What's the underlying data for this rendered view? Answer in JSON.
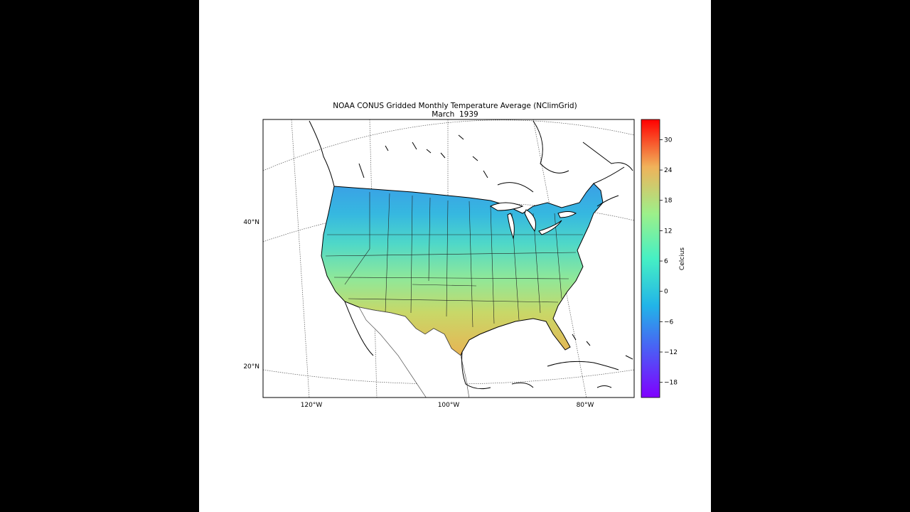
{
  "title": "NOAA CONUS Gridded Monthly Temperature Average (NClimGrid)",
  "subtitle": "March  1939",
  "longitude_labels": [
    "120°W",
    "100°W",
    "80°W"
  ],
  "latitude_labels": [
    "40°N",
    "20°N"
  ],
  "colorbar": {
    "label": "Celcius",
    "ticks": [
      "30",
      "24",
      "18",
      "12",
      "6",
      "0",
      "−6",
      "−12",
      "−18"
    ],
    "tick_values": [
      30,
      24,
      18,
      12,
      6,
      0,
      -6,
      -12,
      -18
    ],
    "range": [
      -21,
      34
    ],
    "colormap": "rainbow",
    "colors": [
      "#8000ff",
      "#2c7ef7",
      "#2adddd",
      "#80ff80",
      "#d4dd4e",
      "#ff7f40",
      "#ff0000"
    ]
  },
  "colors": {
    "north_cold": "#3aa8e8",
    "mid": "#5ee3b8",
    "south_warm": "#d8c15a",
    "florida_hot": "#f0a848"
  }
}
